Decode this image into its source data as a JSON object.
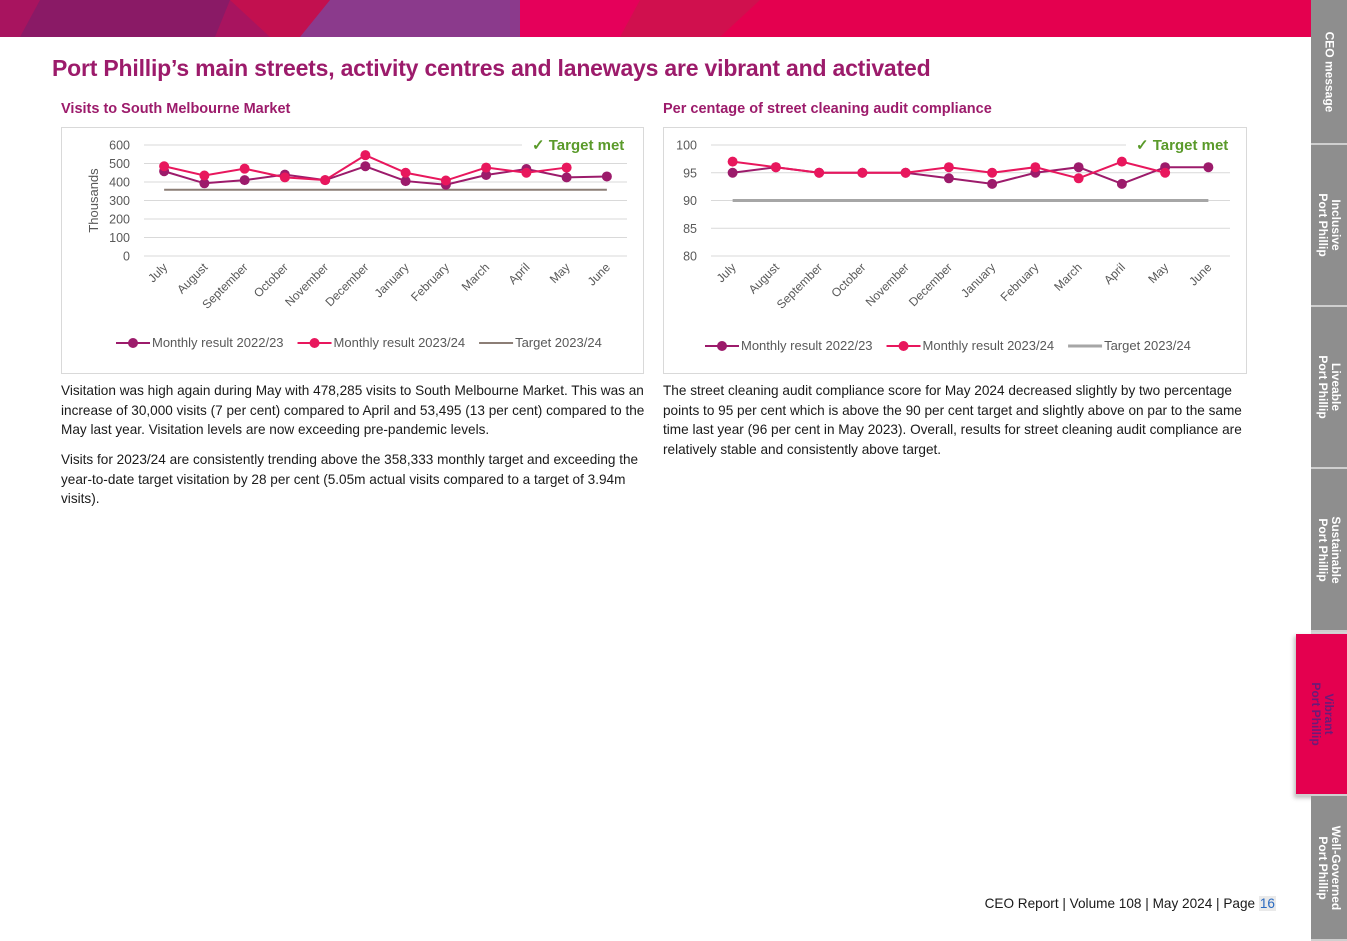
{
  "heading": "Port Phillip’s main streets, activity centres and laneways are vibrant and activated",
  "left": {
    "title": "Visits to South Melbourne Market",
    "paragraphs": [
      "Visitation was high again during May with 478,285 visits to South Melbourne Market. This was an increase of 30,000 visits (7 per cent) compared to April and 53,495 (13 per cent) compared to the May last year. Visitation levels are now exceeding pre-pandemic levels.",
      "Visits for 2023/24 are consistently trending above the 358,333 monthly target and exceeding the year-to-date target visitation by 28 per cent (5.05m actual visits compared to a target of 3.94m visits)."
    ]
  },
  "right": {
    "title": "Per centage of street cleaning audit compliance",
    "paragraphs": [
      "The street cleaning audit compliance score for May 2024 decreased slightly by two percentage points to 95 per cent which is above the 90 per cent target and slightly above on par to the same time last year (96 per cent in May 2023). Overall, results for street cleaning audit compliance are relatively stable and consistently above target."
    ]
  },
  "chart_data": [
    {
      "type": "line",
      "title": "Visits to South Melbourne Market",
      "badge": "✓ Target met",
      "ylabel": "Thousands",
      "ylim": [
        0,
        600
      ],
      "yticks": [
        0,
        100,
        200,
        300,
        400,
        500,
        600
      ],
      "grid": true,
      "legend": "bottom",
      "categories": [
        "July",
        "August",
        "September",
        "October",
        "November",
        "December",
        "January",
        "February",
        "March",
        "April",
        "May",
        "June"
      ],
      "series": [
        {
          "name": "Monthly result 2022/23",
          "color": "#9c1b6b",
          "values": [
            458,
            393,
            410,
            440,
            410,
            485,
            405,
            385,
            438,
            470,
            425,
            430
          ]
        },
        {
          "name": "Monthly result 2023/24",
          "color": "#e8175d",
          "values": [
            485,
            435,
            472,
            425,
            410,
            545,
            450,
            408,
            478,
            450,
            478,
            null
          ]
        },
        {
          "name": "Target 2023/24",
          "color": "#8c7e76",
          "values": [
            358,
            358,
            358,
            358,
            358,
            358,
            358,
            358,
            358,
            358,
            358,
            358
          ]
        }
      ]
    },
    {
      "type": "line",
      "title": "Per centage of street cleaning audit compliance",
      "badge": "✓ Target met",
      "ylabel": "",
      "ylim": [
        80,
        100
      ],
      "yticks": [
        80,
        85,
        90,
        95,
        100
      ],
      "grid": true,
      "legend": "bottom",
      "categories": [
        "July",
        "August",
        "September",
        "October",
        "November",
        "December",
        "January",
        "February",
        "March",
        "April",
        "May",
        "June"
      ],
      "series": [
        {
          "name": "Monthly result 2022/23",
          "color": "#9c1b6b",
          "values": [
            95,
            96,
            95,
            95,
            95,
            94,
            93,
            95,
            96,
            93,
            96,
            96
          ]
        },
        {
          "name": "Monthly result 2023/24",
          "color": "#e8175d",
          "values": [
            97,
            96,
            95,
            95,
            95,
            96,
            95,
            96,
            94,
            97,
            95,
            null
          ]
        },
        {
          "name": "Target 2023/24",
          "color": "#a6a6a6",
          "values": [
            90,
            90,
            90,
            90,
            90,
            90,
            90,
            90,
            90,
            90,
            90,
            90
          ]
        }
      ]
    }
  ],
  "footer": {
    "text": "CEO Report | Volume 108 | May 2024 | Page ",
    "page": "16"
  },
  "side_tabs": [
    {
      "label": "CEO message",
      "active": false
    },
    {
      "label": "Inclusive\nPort Phillip",
      "active": false
    },
    {
      "label": "Liveable\nPort Phillip",
      "active": false
    },
    {
      "label": "Sustainable\nPort Phillip",
      "active": false
    },
    {
      "label": "Vibrant\nPort Phillip",
      "active": true
    },
    {
      "label": "Well-Governed\nPort Phillip",
      "active": false
    }
  ],
  "colors": {
    "brand_purple": "#9c1b6b",
    "brand_pink": "#e8175d",
    "target_met_green": "#5a9a2a"
  }
}
